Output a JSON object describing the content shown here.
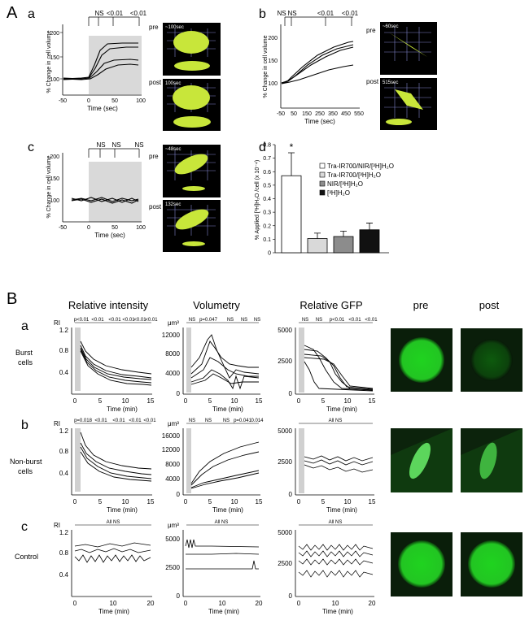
{
  "section_A": "A",
  "section_B": "B",
  "panel_letters": {
    "Aa": "a",
    "Ab": "b",
    "Ac": "c",
    "Ad": "d",
    "Ba": "a",
    "Bb": "b",
    "Bc": "c"
  },
  "pre_label": "pre",
  "post_label": "post",
  "Aa": {
    "ylabel": "% Change in cell volume",
    "xlabel": "Time (sec)",
    "xticks": [
      "-50",
      "0",
      "50",
      "100"
    ],
    "yticks": [
      "100",
      "150",
      "200"
    ],
    "sig": [
      "NS",
      "<0.01",
      "<0.01"
    ],
    "stamp_pre": "~100sec",
    "stamp_post": "100sec"
  },
  "Ab": {
    "ylabel": "% Change in cell volume",
    "xlabel": "Time (sec)",
    "xticks": [
      "-50",
      "50",
      "150",
      "250",
      "350",
      "450",
      "550"
    ],
    "yticks": [
      "100",
      "150",
      "200"
    ],
    "sig": [
      "NS",
      "NS",
      "<0.01",
      "<0.01"
    ],
    "stamp_pre": "~60sec",
    "stamp_post": "515sec"
  },
  "Ac": {
    "ylabel": "% Change in cell volume",
    "xlabel": "Time (sec)",
    "xticks": [
      "-50",
      "0",
      "50",
      "100"
    ],
    "yticks": [
      "100",
      "150",
      "200"
    ],
    "sig": [
      "NS",
      "NS",
      "NS"
    ],
    "stamp_pre": "~48sec",
    "stamp_post": "132sec"
  },
  "chart_data": [
    {
      "type": "bar",
      "panel": "A-d",
      "ylabel": "% Applied [³H]H₂O /cell (x 10⁻⁴)",
      "yticks": [
        "0",
        "0.1",
        "0.2",
        "0.3",
        "0.4",
        "0.5",
        "0.6",
        "0.7",
        "0.8"
      ],
      "ylim": [
        0,
        0.8
      ],
      "categories": [
        "Tra-IR700/NIR/[³H]H₂O",
        "Tra-IR700/[³H]H₂O",
        "NIR/[³H]H₂O",
        "[³H]H₂O"
      ],
      "values": [
        0.57,
        0.105,
        0.12,
        0.17
      ],
      "errors": [
        0.17,
        0.04,
        0.04,
        0.05
      ],
      "colors": [
        "#ffffff",
        "#d9d9d9",
        "#8c8c8c",
        "#111111"
      ],
      "star": "*",
      "legend": "top-right"
    }
  ],
  "B_headers": {
    "ri": "Relative intensity",
    "vol": "Volumetry",
    "gfp": "Relative GFP",
    "pre": "pre",
    "post": "post"
  },
  "row_labels": {
    "a": [
      "Burst",
      "cells"
    ],
    "b": [
      "Non-burst",
      "cells"
    ],
    "c": [
      "Control"
    ]
  },
  "units": {
    "ri": "RI",
    "vol": "μm³"
  },
  "B_xlabel": "Time (min)",
  "B_xticks_15": [
    "0",
    "5",
    "10",
    "15"
  ],
  "B_xticks_20": [
    "0",
    "10",
    "20"
  ],
  "Ba_ri": {
    "yticks": [
      "0.4",
      "0.8",
      "1.2"
    ],
    "sig": [
      "p<0.01",
      "<0.01",
      "<0.01",
      "<0.01",
      "<0.01",
      "<0.01"
    ]
  },
  "Ba_vol": {
    "yticks": [
      "0",
      "4000",
      "8000",
      "12000"
    ],
    "sig": [
      "NS",
      "p=0.047",
      "NS",
      "NS",
      "NS"
    ]
  },
  "Ba_gfp": {
    "yticks": [
      "0",
      "2500",
      "5000"
    ],
    "sig": [
      "NS",
      "NS",
      "p<0.01",
      "<0.01",
      "<0.01"
    ]
  },
  "Bb_ri": {
    "yticks": [
      "0.4",
      "0.8",
      "1.2"
    ],
    "sig": [
      "p=0.018",
      "<0.01",
      "<0.01",
      "<0.01",
      "<0.01"
    ]
  },
  "Bb_vol": {
    "yticks": [
      "0",
      "4000",
      "8000",
      "12000",
      "16000"
    ],
    "sig": [
      "NS",
      "NS",
      "NS",
      "p=0.041",
      "0.014"
    ]
  },
  "Bb_gfp": {
    "yticks": [
      "0",
      "2500",
      "5000"
    ],
    "sig": [
      "All NS"
    ]
  },
  "Bc_ri": {
    "yticks": [
      "0.4",
      "0.8",
      "1.2"
    ],
    "sig": [
      "All NS"
    ]
  },
  "Bc_vol": {
    "yticks": [
      "0",
      "2500",
      "5000"
    ],
    "sig": [
      "All NS"
    ]
  },
  "Bc_gfp": {
    "yticks": [
      "0",
      "2500",
      "5000"
    ],
    "sig": [
      "All NS"
    ]
  }
}
